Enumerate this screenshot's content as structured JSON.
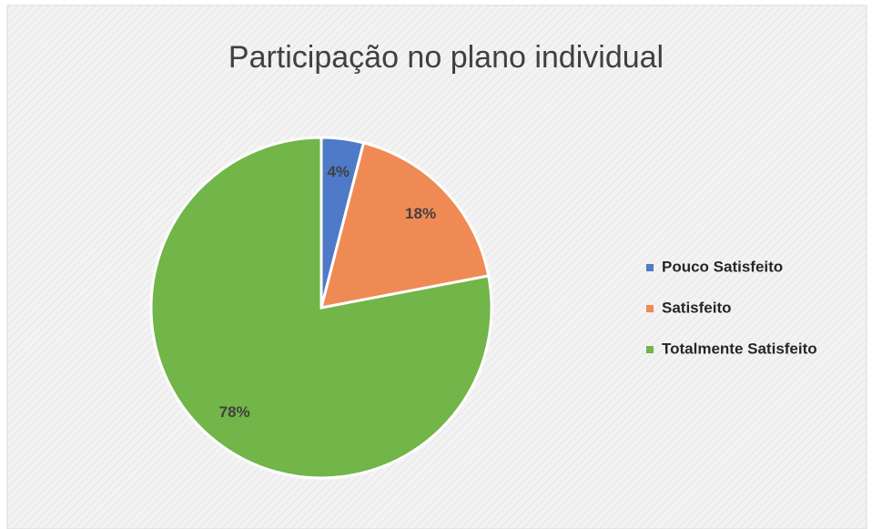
{
  "chart_data": {
    "type": "pie",
    "title": "Participação no plano individual",
    "categories": [
      "Pouco Satisfeito",
      "Satisfeito",
      "Totalmente Satisfeito"
    ],
    "values": [
      4,
      18,
      78
    ],
    "value_labels": [
      "4%",
      "18%",
      "78%"
    ],
    "colors": [
      "#4f7ac7",
      "#f08a55",
      "#72b548"
    ],
    "legend": "right"
  }
}
